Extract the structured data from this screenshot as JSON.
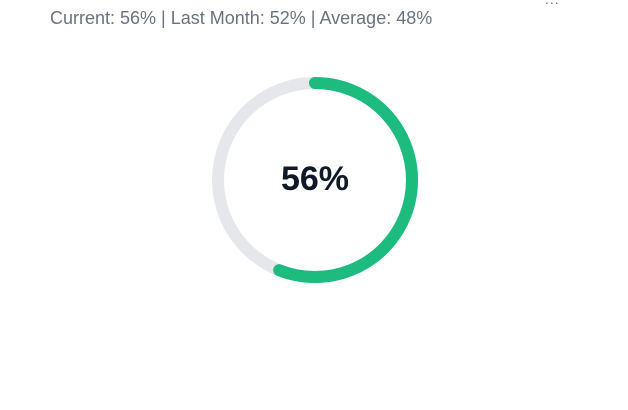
{
  "stats_text": "Current: 56% | Last Month: 52% | Average: 48%",
  "more_icon": "ellipsis-icon",
  "more_label": "...",
  "gauge": {
    "value_percent": 56,
    "label": "56%",
    "progress_color": "#1dbb7d",
    "track_color": "#e5e7eb"
  }
}
